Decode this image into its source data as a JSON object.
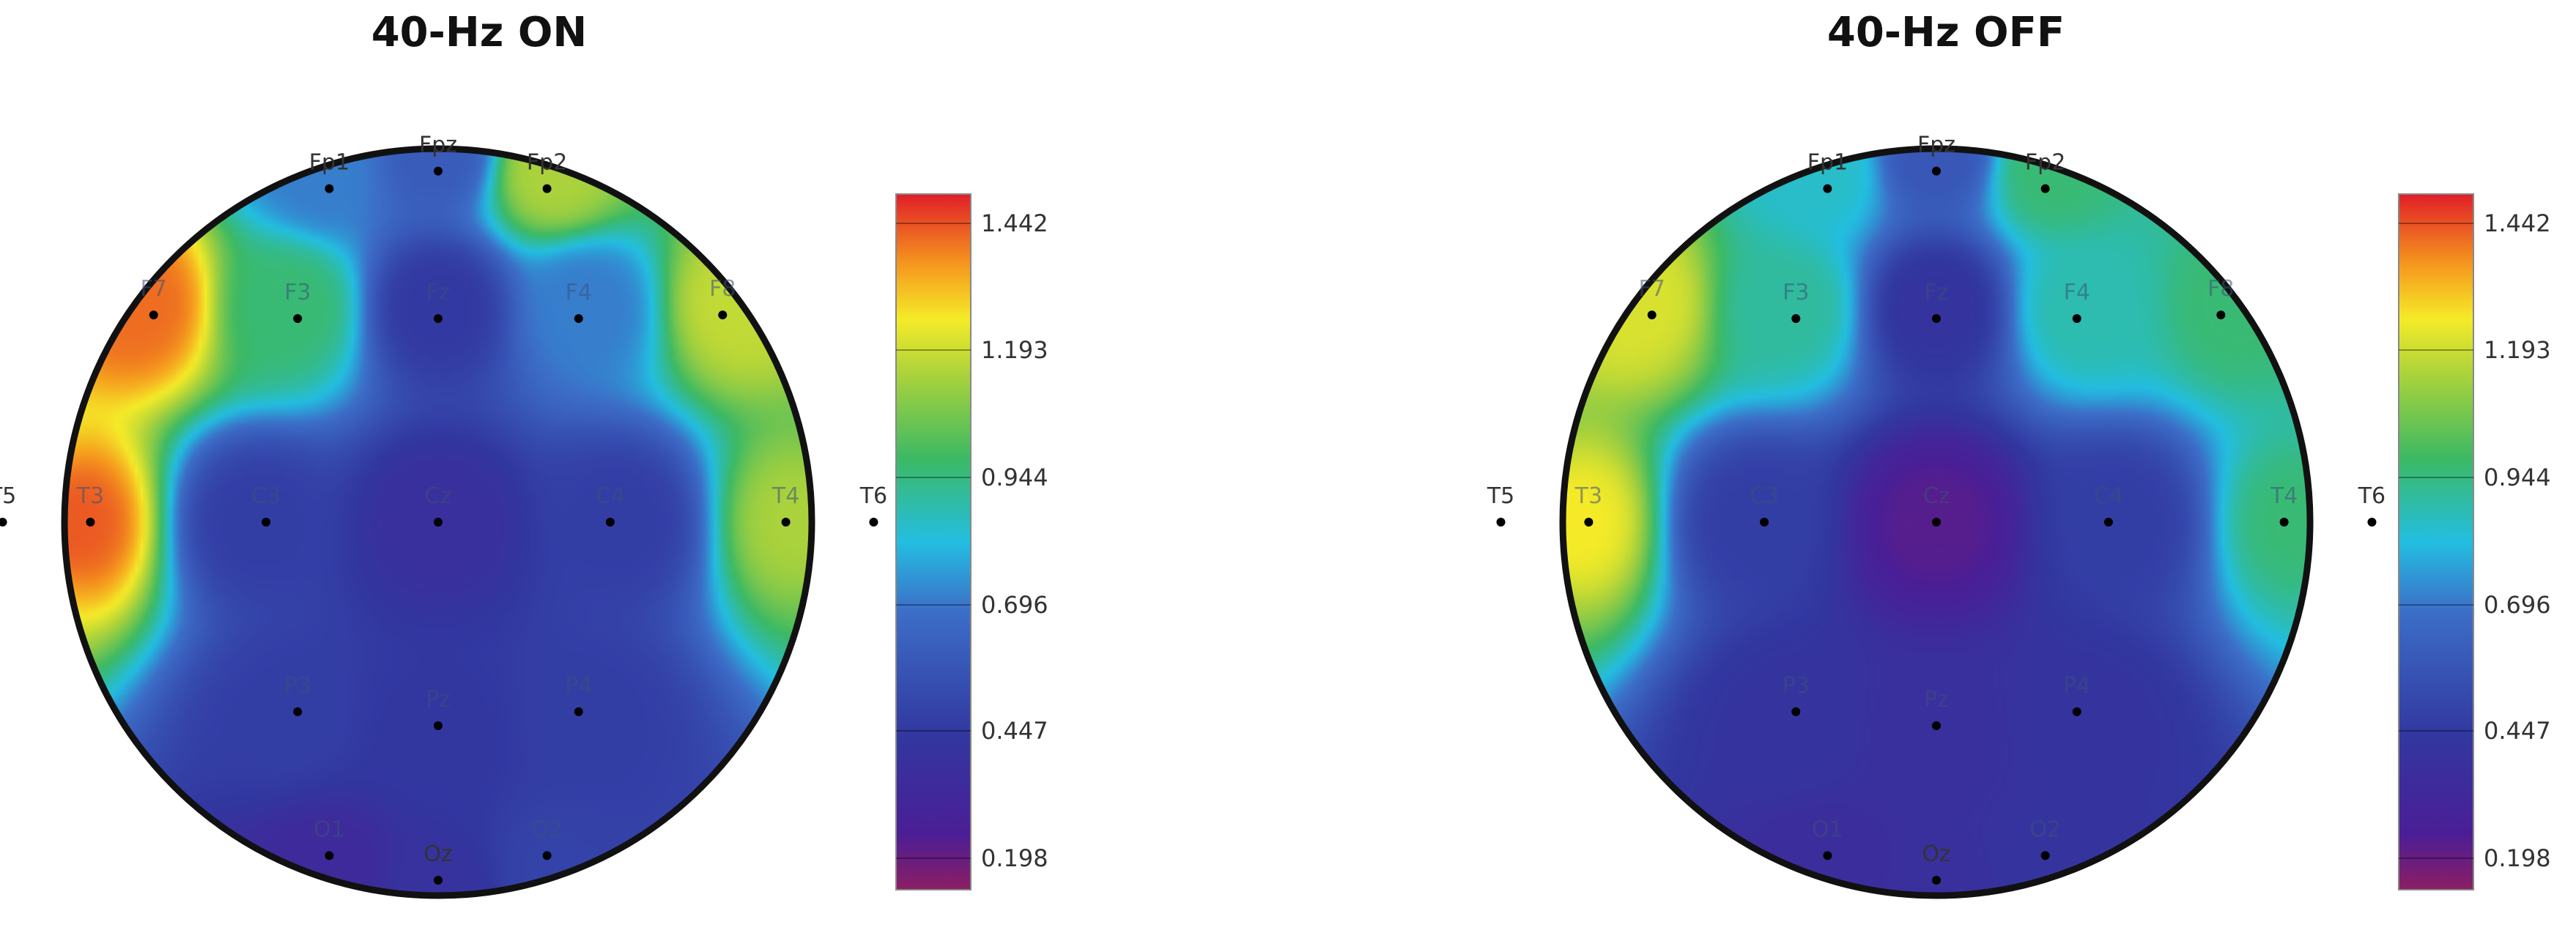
{
  "chart_data": [
    {
      "type": "heatmap",
      "title": "40-Hz ON",
      "colorbar": {
        "ticks": [
          "1.442",
          "1.193",
          "0.944",
          "0.696",
          "0.447",
          "0.198"
        ],
        "min": 0.198,
        "max": 1.442
      },
      "electrodes": [
        {
          "label": "Fp1",
          "value": 0.72
        },
        {
          "label": "Fpz",
          "value": 0.62
        },
        {
          "label": "Fp2",
          "value": 1.12
        },
        {
          "label": "F7",
          "value": 1.36
        },
        {
          "label": "F3",
          "value": 0.95
        },
        {
          "label": "Fz",
          "value": 0.48
        },
        {
          "label": "F4",
          "value": 0.72
        },
        {
          "label": "F8",
          "value": 1.15
        },
        {
          "label": "T5",
          "value": 0.8
        },
        {
          "label": "T3",
          "value": 1.38
        },
        {
          "label": "C3",
          "value": 0.5
        },
        {
          "label": "Cz",
          "value": 0.42
        },
        {
          "label": "C4",
          "value": 0.5
        },
        {
          "label": "T4",
          "value": 1.12
        },
        {
          "label": "T6",
          "value": 0.8
        },
        {
          "label": "P3",
          "value": 0.5
        },
        {
          "label": "Pz",
          "value": 0.47
        },
        {
          "label": "P4",
          "value": 0.5
        },
        {
          "label": "O1",
          "value": 0.38
        },
        {
          "label": "Oz",
          "value": 0.44
        },
        {
          "label": "O2",
          "value": 0.52
        }
      ]
    },
    {
      "type": "heatmap",
      "title": "40-Hz OFF",
      "colorbar": {
        "ticks": [
          "1.442",
          "1.193",
          "0.944",
          "0.696",
          "0.447",
          "0.198"
        ],
        "min": 0.198,
        "max": 1.442
      },
      "electrodes": [
        {
          "label": "Fp1",
          "value": 0.85
        },
        {
          "label": "Fpz",
          "value": 0.6
        },
        {
          "label": "Fp2",
          "value": 0.95
        },
        {
          "label": "F7",
          "value": 1.18
        },
        {
          "label": "F3",
          "value": 0.9
        },
        {
          "label": "Fz",
          "value": 0.45
        },
        {
          "label": "F4",
          "value": 0.88
        },
        {
          "label": "F8",
          "value": 0.95
        },
        {
          "label": "T5",
          "value": 0.75
        },
        {
          "label": "T3",
          "value": 1.22
        },
        {
          "label": "C3",
          "value": 0.5
        },
        {
          "label": "Cz",
          "value": 0.28
        },
        {
          "label": "C4",
          "value": 0.5
        },
        {
          "label": "T4",
          "value": 0.95
        },
        {
          "label": "T6",
          "value": 0.75
        },
        {
          "label": "P3",
          "value": 0.45
        },
        {
          "label": "Pz",
          "value": 0.42
        },
        {
          "label": "P4",
          "value": 0.45
        },
        {
          "label": "O1",
          "value": 0.4
        },
        {
          "label": "Oz",
          "value": 0.42
        },
        {
          "label": "O2",
          "value": 0.45
        }
      ]
    }
  ]
}
